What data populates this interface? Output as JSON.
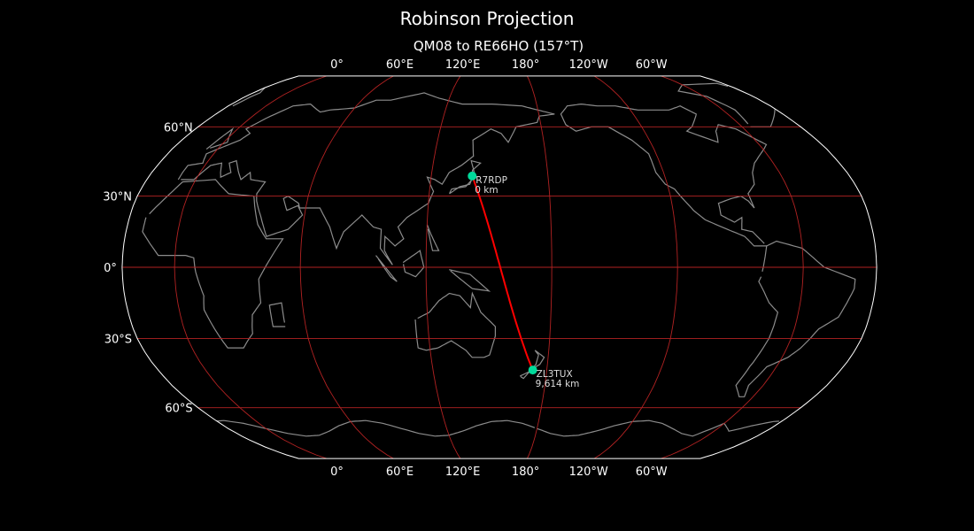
{
  "title": "Robinson Projection",
  "subtitle": "QM08 to RE66HO (157°T)",
  "projection": {
    "name": "Robinson",
    "central_longitude": 155
  },
  "colors": {
    "background": "#000000",
    "outline": "#ffffff",
    "graticule": "#b22222",
    "coastline": "#8c8c8c",
    "path": "#ff0000",
    "marker": "#00d99a"
  },
  "lon_ticks": [
    {
      "lon": 0,
      "label": "0°"
    },
    {
      "lon": 60,
      "label": "60°E"
    },
    {
      "lon": 120,
      "label": "120°E"
    },
    {
      "lon": 180,
      "label": "180°"
    },
    {
      "lon": -120,
      "label": "120°W"
    },
    {
      "lon": -60,
      "label": "60°W"
    }
  ],
  "lat_ticks": [
    {
      "lat": 60,
      "label": "60°N"
    },
    {
      "lat": 30,
      "label": "30°N"
    },
    {
      "lat": 0,
      "label": "0°"
    },
    {
      "lat": -30,
      "label": "30°S"
    },
    {
      "lat": -60,
      "label": "60°S"
    }
  ],
  "points": [
    {
      "call": "R7RDP",
      "distance": "0 km",
      "lat": 38.5,
      "lon": 141
    },
    {
      "call": "ZL3TUX",
      "distance": "9,614 km",
      "lat": -43.4,
      "lon": 172.6
    }
  ]
}
